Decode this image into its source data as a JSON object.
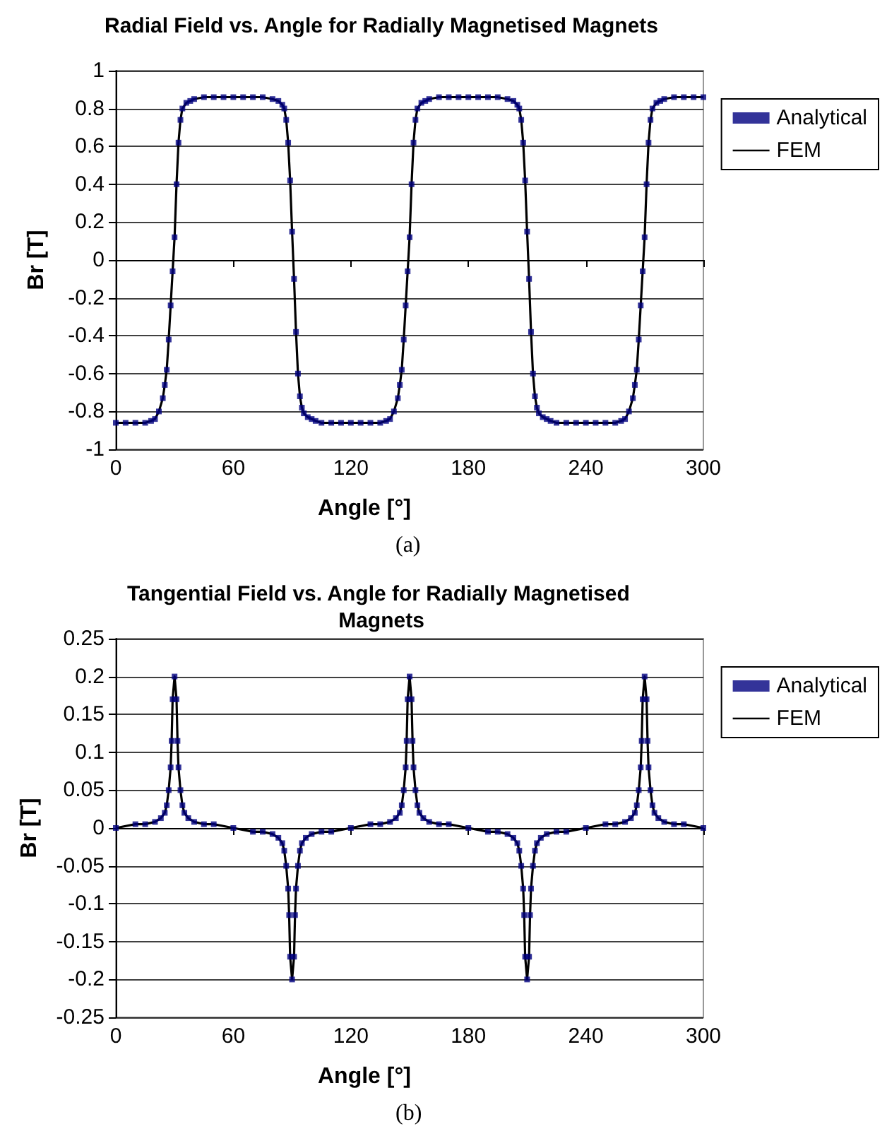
{
  "chart_data": [
    {
      "type": "line",
      "title": "Radial Field vs. Angle for Radially Magnetised Magnets",
      "xlabel": "Angle [°]",
      "ylabel": "Br [T]",
      "annotations": [
        "(a)"
      ],
      "x": [
        0,
        5,
        10,
        15,
        18,
        20,
        22,
        24,
        25,
        26,
        27,
        28,
        29,
        30,
        31,
        32,
        33,
        34,
        36,
        38,
        40,
        45,
        50,
        55,
        60,
        65,
        70,
        75,
        80,
        83,
        85,
        86,
        87,
        88,
        89,
        90,
        91,
        92,
        93,
        94,
        95,
        96,
        98,
        100,
        102,
        105,
        110,
        115,
        120,
        125,
        130,
        135,
        138,
        140,
        142,
        144,
        145,
        146,
        147,
        148,
        149,
        150,
        151,
        152,
        153,
        154,
        156,
        158,
        160,
        165,
        170,
        175,
        180,
        185,
        190,
        195,
        200,
        203,
        205,
        206,
        207,
        208,
        209,
        210,
        211,
        212,
        213,
        214,
        215,
        216,
        218,
        220,
        222,
        225,
        230,
        235,
        240,
        245,
        250,
        255,
        258,
        260,
        262,
        264,
        265,
        266,
        267,
        268,
        269,
        270,
        271,
        272,
        273,
        274,
        276,
        278,
        280,
        285,
        290,
        295,
        300
      ],
      "series": [
        {
          "name": "Analytical",
          "type": "scatter",
          "marker": "square",
          "color": "#000080",
          "values": [
            -0.86,
            -0.86,
            -0.86,
            -0.86,
            -0.85,
            -0.84,
            -0.8,
            -0.73,
            -0.66,
            -0.58,
            -0.42,
            -0.24,
            -0.06,
            0.12,
            0.4,
            0.62,
            0.74,
            0.8,
            0.83,
            0.84,
            0.85,
            0.86,
            0.86,
            0.86,
            0.86,
            0.86,
            0.86,
            0.86,
            0.85,
            0.84,
            0.82,
            0.8,
            0.74,
            0.62,
            0.42,
            0.15,
            -0.1,
            -0.38,
            -0.6,
            -0.72,
            -0.78,
            -0.81,
            -0.83,
            -0.84,
            -0.85,
            -0.86,
            -0.86,
            -0.86,
            -0.86,
            -0.86,
            -0.86,
            -0.86,
            -0.85,
            -0.84,
            -0.8,
            -0.73,
            -0.66,
            -0.58,
            -0.42,
            -0.24,
            -0.06,
            0.12,
            0.4,
            0.62,
            0.74,
            0.8,
            0.83,
            0.84,
            0.85,
            0.86,
            0.86,
            0.86,
            0.86,
            0.86,
            0.86,
            0.86,
            0.85,
            0.84,
            0.82,
            0.8,
            0.74,
            0.62,
            0.42,
            0.15,
            -0.1,
            -0.38,
            -0.6,
            -0.72,
            -0.78,
            -0.81,
            -0.83,
            -0.84,
            -0.85,
            -0.86,
            -0.86,
            -0.86,
            -0.86,
            -0.86,
            -0.86,
            -0.86,
            -0.85,
            -0.84,
            -0.8,
            -0.73,
            -0.66,
            -0.58,
            -0.42,
            -0.24,
            -0.06,
            0.12,
            0.4,
            0.62,
            0.74,
            0.8,
            0.83,
            0.84,
            0.85,
            0.86,
            0.86,
            0.86,
            0.86
          ]
        },
        {
          "name": "FEM",
          "marker": "none",
          "color": "#000000",
          "values": [
            -0.86,
            -0.86,
            -0.86,
            -0.86,
            -0.85,
            -0.84,
            -0.8,
            -0.73,
            -0.66,
            -0.58,
            -0.42,
            -0.24,
            -0.06,
            0.12,
            0.4,
            0.62,
            0.74,
            0.8,
            0.83,
            0.84,
            0.85,
            0.86,
            0.86,
            0.86,
            0.86,
            0.86,
            0.86,
            0.86,
            0.85,
            0.84,
            0.82,
            0.8,
            0.74,
            0.62,
            0.42,
            0.15,
            -0.1,
            -0.38,
            -0.6,
            -0.72,
            -0.78,
            -0.81,
            -0.83,
            -0.84,
            -0.85,
            -0.86,
            -0.86,
            -0.86,
            -0.86,
            -0.86,
            -0.86,
            -0.86,
            -0.85,
            -0.84,
            -0.8,
            -0.73,
            -0.66,
            -0.58,
            -0.42,
            -0.24,
            -0.06,
            0.12,
            0.4,
            0.62,
            0.74,
            0.8,
            0.83,
            0.84,
            0.85,
            0.86,
            0.86,
            0.86,
            0.86,
            0.86,
            0.86,
            0.86,
            0.85,
            0.84,
            0.82,
            0.8,
            0.74,
            0.62,
            0.42,
            0.15,
            -0.1,
            -0.38,
            -0.6,
            -0.72,
            -0.78,
            -0.81,
            -0.83,
            -0.84,
            -0.85,
            -0.86,
            -0.86,
            -0.86,
            -0.86,
            -0.86,
            -0.86,
            -0.86,
            -0.85,
            -0.84,
            -0.8,
            -0.73,
            -0.66,
            -0.58,
            -0.42,
            -0.24,
            -0.06,
            0.12,
            0.4,
            0.62,
            0.74,
            0.8,
            0.83,
            0.84,
            0.85,
            0.86,
            0.86,
            0.86,
            0.86
          ]
        }
      ],
      "xlim": [
        0,
        300
      ],
      "xticks": [
        0,
        60,
        120,
        180,
        240,
        300
      ],
      "ylim": [
        -1,
        1
      ],
      "yticks": [
        -1,
        -0.8,
        -0.6,
        -0.4,
        -0.2,
        0,
        0.2,
        0.4,
        0.6,
        0.8,
        1
      ],
      "grid": "y",
      "legend": "right"
    },
    {
      "type": "line",
      "title": "Tangential Field vs. Angle for Radially Magnetised Magnets",
      "xlabel": "Angle [°]",
      "ylabel": "Br [T]",
      "annotations": [
        "(b)"
      ],
      "x": [
        0,
        10,
        15,
        20,
        23,
        25,
        26,
        27,
        28,
        28.5,
        29,
        30,
        31,
        31.5,
        32,
        33,
        34,
        35,
        37,
        40,
        45,
        50,
        60,
        70,
        75,
        80,
        83,
        85,
        86,
        87,
        88,
        88.5,
        89,
        90,
        91,
        91.5,
        92,
        93,
        94,
        95,
        97,
        100,
        105,
        110,
        120,
        130,
        135,
        140,
        143,
        145,
        146,
        147,
        148,
        148.5,
        149,
        150,
        151,
        151.5,
        152,
        153,
        154,
        155,
        157,
        160,
        165,
        170,
        180,
        190,
        195,
        200,
        203,
        205,
        206,
        207,
        208,
        208.5,
        209,
        210,
        211,
        211.5,
        212,
        213,
        214,
        215,
        217,
        220,
        225,
        230,
        240,
        250,
        255,
        260,
        263,
        265,
        266,
        267,
        268,
        268.5,
        269,
        270,
        271,
        271.5,
        272,
        273,
        274,
        275,
        277,
        280,
        285,
        290,
        300
      ],
      "series": [
        {
          "name": "Analytical",
          "type": "scatter",
          "marker": "square",
          "color": "#000080",
          "values": [
            0,
            0.005,
            0.005,
            0.008,
            0.013,
            0.02,
            0.03,
            0.05,
            0.08,
            0.115,
            0.17,
            0.2,
            0.17,
            0.115,
            0.08,
            0.05,
            0.03,
            0.02,
            0.013,
            0.008,
            0.005,
            0.005,
            0,
            -0.005,
            -0.005,
            -0.008,
            -0.013,
            -0.02,
            -0.03,
            -0.05,
            -0.08,
            -0.115,
            -0.17,
            -0.2,
            -0.17,
            -0.115,
            -0.08,
            -0.05,
            -0.03,
            -0.02,
            -0.013,
            -0.008,
            -0.005,
            -0.005,
            0,
            0.005,
            0.005,
            0.008,
            0.013,
            0.02,
            0.03,
            0.05,
            0.08,
            0.115,
            0.17,
            0.2,
            0.17,
            0.115,
            0.08,
            0.05,
            0.03,
            0.02,
            0.013,
            0.008,
            0.005,
            0.005,
            0,
            -0.005,
            -0.005,
            -0.008,
            -0.013,
            -0.02,
            -0.03,
            -0.05,
            -0.08,
            -0.115,
            -0.17,
            -0.2,
            -0.17,
            -0.115,
            -0.08,
            -0.05,
            -0.03,
            -0.02,
            -0.013,
            -0.008,
            -0.005,
            -0.005,
            0,
            0.005,
            0.005,
            0.008,
            0.013,
            0.02,
            0.03,
            0.05,
            0.08,
            0.115,
            0.17,
            0.2,
            0.17,
            0.115,
            0.08,
            0.05,
            0.03,
            0.02,
            0.013,
            0.008,
            0.005,
            0.005,
            0
          ]
        },
        {
          "name": "FEM",
          "marker": "none",
          "color": "#000000",
          "values": [
            0,
            0.005,
            0.005,
            0.008,
            0.013,
            0.02,
            0.03,
            0.05,
            0.08,
            0.115,
            0.17,
            0.2,
            0.17,
            0.115,
            0.08,
            0.05,
            0.03,
            0.02,
            0.013,
            0.008,
            0.005,
            0.005,
            0,
            -0.005,
            -0.005,
            -0.008,
            -0.013,
            -0.02,
            -0.03,
            -0.05,
            -0.08,
            -0.115,
            -0.17,
            -0.2,
            -0.17,
            -0.115,
            -0.08,
            -0.05,
            -0.03,
            -0.02,
            -0.013,
            -0.008,
            -0.005,
            -0.005,
            0,
            0.005,
            0.005,
            0.008,
            0.013,
            0.02,
            0.03,
            0.05,
            0.08,
            0.115,
            0.17,
            0.2,
            0.17,
            0.115,
            0.08,
            0.05,
            0.03,
            0.02,
            0.013,
            0.008,
            0.005,
            0.005,
            0,
            -0.005,
            -0.005,
            -0.008,
            -0.013,
            -0.02,
            -0.03,
            -0.05,
            -0.08,
            -0.115,
            -0.17,
            -0.2,
            -0.17,
            -0.115,
            -0.08,
            -0.05,
            -0.03,
            -0.02,
            -0.013,
            -0.008,
            -0.005,
            -0.005,
            0,
            0.005,
            0.005,
            0.008,
            0.013,
            0.02,
            0.03,
            0.05,
            0.08,
            0.115,
            0.17,
            0.2,
            0.17,
            0.115,
            0.08,
            0.05,
            0.03,
            0.02,
            0.013,
            0.008,
            0.005,
            0.005,
            0
          ]
        }
      ],
      "xlim": [
        0,
        300
      ],
      "xticks": [
        0,
        60,
        120,
        180,
        240,
        300
      ],
      "ylim": [
        -0.25,
        0.25
      ],
      "yticks": [
        -0.25,
        -0.2,
        -0.15,
        -0.1,
        -0.05,
        0,
        0.05,
        0.1,
        0.15,
        0.2,
        0.25
      ],
      "grid": "y",
      "legend": "right"
    }
  ]
}
